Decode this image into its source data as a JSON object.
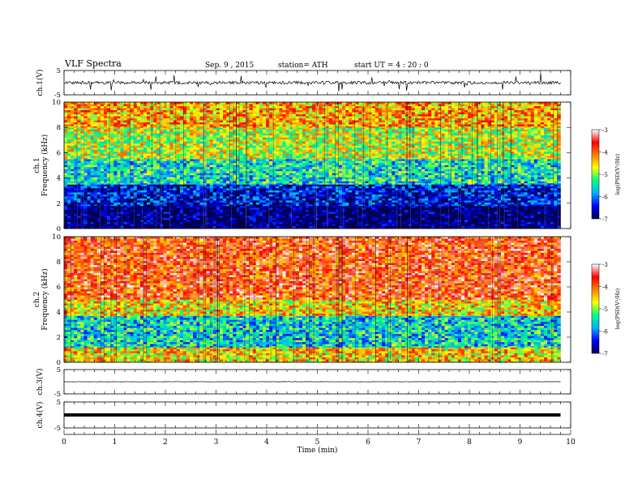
{
  "header": {
    "title": "VLF  Spectra",
    "date": "Sep. 9  , 2015",
    "station": "station= ATH",
    "start": "start  UT  =   4  : 20 : 0"
  },
  "colorbar": {
    "label": "log(PSD(V²/Hz)",
    "ticks": [
      "-3",
      "-4",
      "-5",
      "-6",
      "-7"
    ],
    "stops": [
      "#000050",
      "#0000ff",
      "#00b0ff",
      "#00ff80",
      "#ffff00",
      "#ff8000",
      "#ff0000",
      "#ffffff"
    ]
  },
  "chart_data": [
    {
      "type": "line",
      "panel": "ch1-waveform",
      "ylabel": "ch.1(V)",
      "ylim": [
        -5,
        5
      ],
      "yticks": [
        "5",
        "-5"
      ],
      "xlim": [
        0,
        10
      ],
      "trace_extent_min": 9.8,
      "baseline": 0,
      "color": "#000000"
    },
    {
      "type": "heatmap",
      "panel": "ch1-spectrogram",
      "ylabel": "ch.1\nFrequency  (kHz)",
      "ylim": [
        0,
        10
      ],
      "yticks": [
        "0",
        "2",
        "4",
        "6",
        "8",
        "10"
      ],
      "xlim": [
        0,
        10
      ],
      "trace_extent_min": 9.8,
      "bands": [
        {
          "from_khz": 0,
          "to_khz": 1.8,
          "log_psd": -7
        },
        {
          "from_khz": 1.8,
          "to_khz": 3.5,
          "log_psd": -6.5
        },
        {
          "from_khz": 3.5,
          "to_khz": 5.5,
          "log_psd": -5.5
        },
        {
          "from_khz": 5.5,
          "to_khz": 8,
          "log_psd": -4.8
        },
        {
          "from_khz": 8,
          "to_khz": 10,
          "log_psd": -4.3
        }
      ]
    },
    {
      "type": "heatmap",
      "panel": "ch2-spectrogram",
      "ylabel": "ch.2\nFrequency  (kHz)",
      "ylim": [
        0,
        10
      ],
      "yticks": [
        "0",
        "2",
        "4",
        "6",
        "8",
        "10"
      ],
      "xlim": [
        0,
        10
      ],
      "trace_extent_min": 9.8,
      "bands": [
        {
          "from_khz": 0,
          "to_khz": 1.2,
          "log_psd": -4.5
        },
        {
          "from_khz": 1.2,
          "to_khz": 3.7,
          "log_psd": -5.6
        },
        {
          "from_khz": 3.7,
          "to_khz": 5,
          "log_psd": -4.5
        },
        {
          "from_khz": 5,
          "to_khz": 10,
          "log_psd": -3.8
        }
      ]
    },
    {
      "type": "line",
      "panel": "ch3-waveform",
      "ylabel": "ch.3(V)",
      "ylim": [
        -5,
        5
      ],
      "yticks": [
        "5",
        "-5"
      ],
      "xlim": [
        0,
        10
      ],
      "trace_extent_min": 9.8,
      "baseline": 0,
      "color": "#000000"
    },
    {
      "type": "line",
      "panel": "ch4-waveform",
      "ylabel": "ch.4(V)",
      "ylim": [
        -5,
        5
      ],
      "yticks": [
        "5",
        "-5"
      ],
      "xlim": [
        0,
        10
      ],
      "trace_extent_min": 9.8,
      "baseline": 0,
      "color": "#000000"
    }
  ],
  "xaxis": {
    "label": "Time  (min)",
    "ticks": [
      "0",
      "1",
      "2",
      "3",
      "4",
      "5",
      "6",
      "7",
      "8",
      "9",
      "10"
    ]
  }
}
